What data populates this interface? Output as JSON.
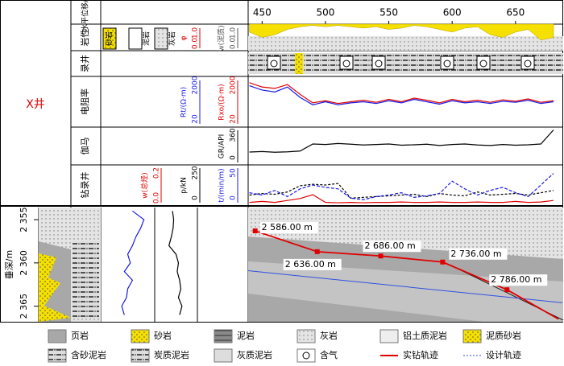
{
  "well": "X井",
  "rows": [
    "水平位移/m",
    "岩性",
    "录井",
    "电阻率",
    "伽马",
    "钻录井"
  ],
  "lith_header": [
    "砂岩",
    "泥岩",
    "灰岩"
  ],
  "x": [
    440,
    450,
    460,
    470,
    480,
    490,
    500,
    510,
    520,
    530,
    540,
    550,
    560,
    570,
    580,
    590,
    600,
    610,
    620,
    630,
    640,
    650,
    660,
    670,
    680
  ],
  "xlim": [
    439,
    687
  ],
  "xticks": [
    450,
    500,
    550,
    600,
    650
  ],
  "phi": {
    "name": "φ",
    "color": "#e00000",
    "ticks": [
      {
        "value": 1,
        "label": "1.0"
      },
      {
        "value": 0,
        "label": "0.0"
      }
    ]
  },
  "vsh": {
    "name": "w(泥质)",
    "color": "#f5e000",
    "lim": [
      0,
      1
    ],
    "ticks": [
      {
        "value": 0,
        "label": "0.0"
      },
      {
        "value": 1,
        "label": "1.0"
      }
    ],
    "values": [
      0.7,
      0.5,
      0.6,
      0.8,
      0.9,
      0.95,
      0.9,
      0.95,
      0.9,
      0.85,
      0.9,
      0.8,
      0.85,
      0.95,
      0.9,
      0.8,
      0.7,
      0.85,
      0.9,
      0.6,
      0.5,
      0.7,
      0.8,
      0.4,
      0.5
    ]
  },
  "rt": {
    "name": "Rt/(Ω·m)",
    "color": "#1a1ae6",
    "lim": [
      20,
      2000
    ],
    "log": true,
    "ticks": [
      20,
      2000
    ],
    "values": [
      900,
      600,
      500,
      800,
      300,
      150,
      200,
      150,
      180,
      200,
      170,
      220,
      180,
      250,
      200,
      160,
      220,
      180,
      200,
      170,
      210,
      190,
      230,
      170,
      200
    ]
  },
  "rxo": {
    "name": "Rxo/(Ω·m)",
    "color": "#e00000",
    "lim": [
      20,
      2000
    ],
    "log": true,
    "ticks": [
      20,
      2000
    ],
    "values": [
      1200,
      800,
      700,
      1000,
      400,
      180,
      220,
      170,
      200,
      230,
      190,
      250,
      200,
      280,
      230,
      180,
      250,
      200,
      230,
      190,
      240,
      210,
      260,
      190,
      220
    ]
  },
  "gr": {
    "name": "GR/API",
    "color": "#000000",
    "lim": [
      0,
      360
    ],
    "ticks": [
      0,
      360
    ],
    "values": [
      120,
      125,
      118,
      122,
      130,
      200,
      195,
      205,
      198,
      190,
      195,
      200,
      188,
      192,
      198,
      185,
      195,
      200,
      190,
      185,
      195,
      188,
      192,
      200,
      340
    ]
  },
  "wt": {
    "name": "w(总烃)",
    "color": "#e00000",
    "lim": [
      0,
      0.2
    ],
    "ticks": [
      {
        "value": 0,
        "label": "0.0"
      },
      {
        "value": 0.2,
        "label": "0.2"
      }
    ],
    "values": [
      0.01,
      0.015,
      0.01,
      0.02,
      0.03,
      0.05,
      0.01,
      0.008,
      0.01,
      0.008,
      0.01,
      0.01,
      0.012,
      0.01,
      0.01,
      0.012,
      0.01,
      0.01,
      0.012,
      0.01,
      0.01,
      0.015,
      0.01,
      0.012,
      0.02
    ]
  },
  "p": {
    "name": "p/kN",
    "color": "#000000",
    "lim": [
      0,
      250
    ],
    "ticks": [
      0,
      250
    ],
    "values": [
      60,
      70,
      65,
      80,
      120,
      130,
      125,
      135,
      40,
      45,
      50,
      55,
      60,
      65,
      50,
      70,
      60,
      55,
      80,
      60,
      65,
      70,
      60,
      75,
      90
    ]
  },
  "t": {
    "name": "t/(min/m)",
    "color": "#1a1ae6",
    "lim": [
      0,
      50
    ],
    "ticks": [
      0,
      50
    ],
    "values": [
      15,
      12,
      18,
      10,
      20,
      25,
      22,
      20,
      8,
      6,
      10,
      12,
      15,
      9,
      11,
      14,
      30,
      20,
      12,
      18,
      22,
      15,
      10,
      25,
      40
    ]
  },
  "section": {
    "ylabel": "垂深/m",
    "ylim": [
      2353.6,
      2366.8
    ],
    "yticks": [
      {
        "value": 2355,
        "label": "2 355"
      },
      {
        "value": 2360,
        "label": "2 360"
      },
      {
        "value": 2365,
        "label": "2 365"
      }
    ],
    "actual": {
      "name": "实钻轨迹",
      "color": "#e00000",
      "x": [
        444.5,
        493.5,
        543.6,
        592.5,
        643.3,
        684
      ],
      "depth": [
        2356.3,
        2358.7,
        2359.2,
        2359.9,
        2363.1,
        2366.5
      ],
      "labels": [
        "2 586.00 m",
        "2 636.00 m",
        "2 686.00 m",
        "2 736.00 m",
        "2 786.00 m",
        null
      ]
    },
    "design": {
      "name": "设计轨迹",
      "color": "#3050e0",
      "x": [
        439,
        687
      ],
      "depth": [
        2360.9,
        2364.6
      ]
    }
  },
  "depth_logs": {
    "depth": [
      2354,
      2355,
      2356,
      2357,
      2358,
      2359,
      2360,
      2361,
      2362,
      2363,
      2364,
      2365,
      2366
    ],
    "rt": [
      300,
      800,
      600,
      400,
      300,
      200,
      250,
      150,
      300,
      200,
      180,
      120,
      150
    ],
    "gr": [
      150,
      160,
      155,
      140,
      120,
      180,
      200,
      190,
      210,
      220,
      200,
      230,
      210
    ]
  },
  "legend": [
    "页岩",
    "砂岩",
    "泥岩",
    "灰岩",
    "铝土质泥岩",
    "泥质砂岩",
    "含砂泥岩",
    "炭质泥岩",
    "灰质泥岩",
    "含气",
    "实钻轨迹",
    "设计轨迹"
  ]
}
